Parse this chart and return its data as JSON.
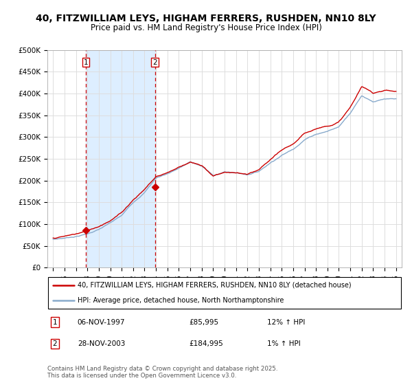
{
  "title": "40, FITZWILLIAM LEYS, HIGHAM FERRERS, RUSHDEN, NN10 8LY",
  "subtitle": "Price paid vs. HM Land Registry's House Price Index (HPI)",
  "legend_line1": "40, FITZWILLIAM LEYS, HIGHAM FERRERS, RUSHDEN, NN10 8LY (detached house)",
  "legend_line2": "HPI: Average price, detached house, North Northamptonshire",
  "footer": "Contains HM Land Registry data © Crown copyright and database right 2025.\nThis data is licensed under the Open Government Licence v3.0.",
  "annotation1_num": "1",
  "annotation1_date": "06-NOV-1997",
  "annotation1_price": "£85,995",
  "annotation1_hpi": "12% ↑ HPI",
  "annotation2_num": "2",
  "annotation2_date": "28-NOV-2003",
  "annotation2_price": "£184,995",
  "annotation2_hpi": "1% ↑ HPI",
  "vline1_x": 1997.85,
  "vline2_x": 2003.91,
  "marker1_x": 1997.85,
  "marker1_y": 85995,
  "marker2_x": 2003.91,
  "marker2_y": 184995,
  "xlim": [
    1994.5,
    2025.5
  ],
  "ylim": [
    0,
    500000
  ],
  "yticks": [
    0,
    50000,
    100000,
    150000,
    200000,
    250000,
    300000,
    350000,
    400000,
    450000,
    500000
  ],
  "ytick_labels": [
    "£0",
    "£50K",
    "£100K",
    "£150K",
    "£200K",
    "£250K",
    "£300K",
    "£350K",
    "£400K",
    "£450K",
    "£500K"
  ],
  "xticks": [
    1995,
    1996,
    1997,
    1998,
    1999,
    2000,
    2001,
    2002,
    2003,
    2004,
    2005,
    2006,
    2007,
    2008,
    2009,
    2010,
    2011,
    2012,
    2013,
    2014,
    2015,
    2016,
    2017,
    2018,
    2019,
    2020,
    2021,
    2022,
    2023,
    2024,
    2025
  ],
  "red_line_color": "#cc0000",
  "blue_line_color": "#88aacc",
  "vline_color": "#cc0000",
  "shade_color": "#ddeeff",
  "plot_bg": "#ffffff",
  "grid_color": "#dddddd",
  "title_fontsize": 10,
  "subtitle_fontsize": 8.5,
  "hpi_base": {
    "1995": 65000,
    "1996": 68000,
    "1997": 72000,
    "1998": 78000,
    "1999": 88000,
    "2000": 102000,
    "2001": 118000,
    "2002": 148000,
    "2003": 172000,
    "2004": 205000,
    "2005": 215000,
    "2006": 228000,
    "2007": 242000,
    "2008": 232000,
    "2009": 210000,
    "2010": 218000,
    "2011": 216000,
    "2012": 212000,
    "2013": 220000,
    "2014": 240000,
    "2015": 258000,
    "2016": 272000,
    "2017": 295000,
    "2018": 308000,
    "2019": 315000,
    "2020": 325000,
    "2021": 358000,
    "2022": 398000,
    "2023": 385000,
    "2024": 390000,
    "2025": 388000
  },
  "red_base": {
    "1995": 68000,
    "1996": 72000,
    "1997": 77000,
    "1998": 84000,
    "1999": 95000,
    "2000": 110000,
    "2001": 128000,
    "2002": 158000,
    "2003": 183000,
    "2004": 212000,
    "2005": 222000,
    "2006": 235000,
    "2007": 248000,
    "2008": 238000,
    "2009": 215000,
    "2010": 224000,
    "2011": 222000,
    "2012": 218000,
    "2013": 226000,
    "2014": 248000,
    "2015": 268000,
    "2016": 282000,
    "2017": 305000,
    "2018": 318000,
    "2019": 325000,
    "2020": 335000,
    "2021": 368000,
    "2022": 415000,
    "2023": 400000,
    "2024": 408000,
    "2025": 405000
  }
}
